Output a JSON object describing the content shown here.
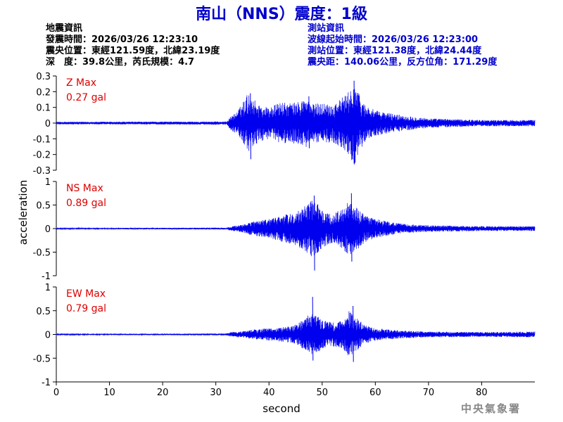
{
  "title": "南山（NNS）震度：1級",
  "quake_info": {
    "heading": "地震資訊",
    "origin_time": "發震時間：2026/03/26 12:23:10",
    "epicenter": "震央位置：東經121.59度，北緯23.19度",
    "depth_magnitude": "深　度：39.8公里，芮氏規模：4.7"
  },
  "station_info": {
    "heading": "測站資訊",
    "wave_start": "波線起始時間：2026/03/26 12:23:00",
    "station_position": "測站位置：東經121.38度，北緯24.44度",
    "distance_azimuth": "震央距：140.06公里，反方位角：171.29度"
  },
  "credit": "中央氣象署",
  "colors": {
    "trace": "#0000ee",
    "title": "#0000cc",
    "label": "#dd0000",
    "axis": "#000000"
  },
  "chart_data": {
    "type": "line",
    "xlabel": "second",
    "ylabel": "acceleration",
    "xlim": [
      0,
      90
    ],
    "x_ticks": [
      0,
      10,
      20,
      30,
      40,
      50,
      60,
      70,
      80
    ],
    "x_tick_labels": [
      "0",
      "10",
      "20",
      "30",
      "40",
      "50",
      "60",
      "70",
      "80"
    ],
    "grid": false,
    "legend": "none",
    "panels": [
      {
        "component": "Z",
        "label": "Z Max",
        "max_text": "0.27 gal",
        "max_value": 0.27,
        "ylim": [
          -0.3,
          0.3
        ],
        "y_ticks": [
          0.3,
          0.2,
          0.1,
          0,
          -0.1,
          -0.2,
          -0.3
        ],
        "y_tick_labels": [
          "0.3",
          "0.2",
          "0.1",
          "0",
          "-0.1",
          "-0.2",
          "-0.3"
        ],
        "envelope": [
          [
            0,
            0.008
          ],
          [
            32,
            0.01
          ],
          [
            33,
            0.05
          ],
          [
            34,
            0.07
          ],
          [
            35,
            0.13
          ],
          [
            36,
            0.19
          ],
          [
            37,
            0.16
          ],
          [
            38,
            0.12
          ],
          [
            40,
            0.1
          ],
          [
            42,
            0.13
          ],
          [
            45,
            0.13
          ],
          [
            47,
            0.16
          ],
          [
            48,
            0.12
          ],
          [
            50,
            0.13
          ],
          [
            52,
            0.12
          ],
          [
            54,
            0.17
          ],
          [
            55,
            0.2
          ],
          [
            56,
            0.27
          ],
          [
            57,
            0.18
          ],
          [
            58,
            0.12
          ],
          [
            60,
            0.08
          ],
          [
            65,
            0.05
          ],
          [
            70,
            0.03
          ],
          [
            75,
            0.025
          ],
          [
            80,
            0.02
          ],
          [
            90,
            0.02
          ]
        ],
        "peaks": [
          [
            36.5,
            0.19,
            -0.23
          ],
          [
            47.5,
            0.17,
            -0.16
          ],
          [
            56,
            0.27,
            -0.25
          ]
        ]
      },
      {
        "component": "NS",
        "label": "NS Max",
        "max_text": "0.89 gal",
        "max_value": 0.89,
        "ylim": [
          -1,
          1
        ],
        "y_ticks": [
          1,
          0.5,
          0,
          -0.5,
          -1
        ],
        "y_tick_labels": [
          "1",
          "0.5",
          "0",
          "-0.5",
          "-1"
        ],
        "envelope": [
          [
            0,
            0.01
          ],
          [
            32,
            0.02
          ],
          [
            33,
            0.05
          ],
          [
            35,
            0.08
          ],
          [
            37,
            0.15
          ],
          [
            40,
            0.2
          ],
          [
            43,
            0.3
          ],
          [
            45,
            0.35
          ],
          [
            47,
            0.5
          ],
          [
            48,
            0.6
          ],
          [
            49,
            0.55
          ],
          [
            50,
            0.4
          ],
          [
            52,
            0.3
          ],
          [
            54,
            0.45
          ],
          [
            55,
            0.58
          ],
          [
            56,
            0.5
          ],
          [
            58,
            0.3
          ],
          [
            60,
            0.2
          ],
          [
            65,
            0.1
          ],
          [
            70,
            0.07
          ],
          [
            80,
            0.05
          ],
          [
            90,
            0.05
          ]
        ],
        "peaks": [
          [
            48.5,
            0.7,
            -0.89
          ],
          [
            55.5,
            0.75,
            -0.7
          ]
        ]
      },
      {
        "component": "EW",
        "label": "EW Max",
        "max_text": "0.79 gal",
        "max_value": 0.79,
        "ylim": [
          -1,
          1
        ],
        "y_ticks": [
          1,
          0.5,
          0,
          -0.5,
          -1
        ],
        "y_tick_labels": [
          "1",
          "0.5",
          "0",
          "-0.5",
          "-1"
        ],
        "envelope": [
          [
            0,
            0.01
          ],
          [
            32,
            0.02
          ],
          [
            33,
            0.05
          ],
          [
            35,
            0.07
          ],
          [
            37,
            0.1
          ],
          [
            40,
            0.13
          ],
          [
            43,
            0.16
          ],
          [
            45,
            0.2
          ],
          [
            47,
            0.35
          ],
          [
            48,
            0.5
          ],
          [
            49,
            0.4
          ],
          [
            50,
            0.3
          ],
          [
            52,
            0.25
          ],
          [
            54,
            0.3
          ],
          [
            55,
            0.5
          ],
          [
            56,
            0.4
          ],
          [
            58,
            0.2
          ],
          [
            60,
            0.13
          ],
          [
            65,
            0.08
          ],
          [
            70,
            0.06
          ],
          [
            80,
            0.05
          ],
          [
            90,
            0.06
          ]
        ],
        "peaks": [
          [
            48.2,
            0.79,
            -0.55
          ],
          [
            55.8,
            0.6,
            -0.58
          ]
        ]
      }
    ]
  }
}
